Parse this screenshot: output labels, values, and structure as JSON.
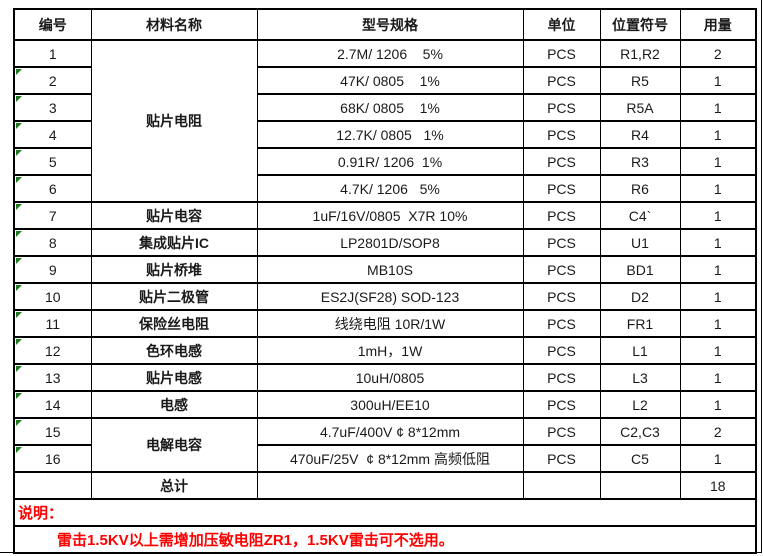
{
  "colors": {
    "note_red": "#FF0000",
    "marker_green": "#1F7A1F",
    "border": "#000000"
  },
  "table": {
    "headers": [
      "编号",
      "材料名称",
      "型号规格",
      "单位",
      "位置符号",
      "用量"
    ],
    "rows": [
      {
        "no": "1",
        "name": "贴片电阻",
        "name_rowspan": 6,
        "spec": "2.7M/ 1206    5%",
        "unit": "PCS",
        "ref": "R1,R2",
        "qty": "2",
        "marker": false
      },
      {
        "no": "2",
        "spec": "47K/ 0805    1%",
        "unit": "PCS",
        "ref": "R5",
        "qty": "1",
        "marker": true
      },
      {
        "no": "3",
        "spec": "68K/ 0805    1%",
        "unit": "PCS",
        "ref": "R5A",
        "qty": "1",
        "marker": true
      },
      {
        "no": "4",
        "spec": "12.7K/ 0805   1%",
        "unit": "PCS",
        "ref": "R4",
        "qty": "1",
        "marker": true
      },
      {
        "no": "5",
        "spec": "0.91R/ 1206  1%",
        "unit": "PCS",
        "ref": "R3",
        "qty": "1",
        "marker": true
      },
      {
        "no": "6",
        "spec": "4.7K/ 1206   5%",
        "unit": "PCS",
        "ref": "R6",
        "qty": "1",
        "marker": true
      },
      {
        "no": "7",
        "name": "贴片电容",
        "name_rowspan": 1,
        "spec": "1uF/16V/0805  X7R 10%",
        "unit": "PCS",
        "ref": "C4`",
        "qty": "1",
        "marker": true
      },
      {
        "no": "8",
        "name": "集成贴片IC",
        "name_rowspan": 1,
        "spec": "LP2801D/SOP8",
        "unit": "PCS",
        "ref": "U1",
        "qty": "1",
        "marker": true
      },
      {
        "no": "9",
        "name": "贴片桥堆",
        "name_rowspan": 1,
        "spec": "MB10S",
        "unit": "PCS",
        "ref": "BD1",
        "qty": "1",
        "marker": true
      },
      {
        "no": "10",
        "name": "贴片二极管",
        "name_rowspan": 1,
        "spec": "ES2J(SF28) SOD-123",
        "unit": "PCS",
        "ref": "D2",
        "qty": "1",
        "marker": true
      },
      {
        "no": "11",
        "name": "保险丝电阻",
        "name_rowspan": 1,
        "spec": "线绕电阻 10R/1W",
        "unit": "PCS",
        "ref": "FR1",
        "qty": "1",
        "marker": true
      },
      {
        "no": "12",
        "name": "色环电感",
        "name_rowspan": 1,
        "spec": "1mH，1W",
        "unit": "PCS",
        "ref": "L1",
        "qty": "1",
        "marker": true
      },
      {
        "no": "13",
        "name": "贴片电感",
        "name_rowspan": 1,
        "spec": "10uH/0805",
        "unit": "PCS",
        "ref": "L3",
        "qty": "1",
        "marker": true
      },
      {
        "no": "14",
        "name": "电感",
        "name_rowspan": 1,
        "spec": "300uH/EE10",
        "unit": "PCS",
        "ref": "L2",
        "qty": "1",
        "marker": true
      },
      {
        "no": "15",
        "name": "电解电容",
        "name_rowspan": 2,
        "spec": "4.7uF/400V ¢ 8*12mm",
        "unit": "PCS",
        "ref": "C2,C3",
        "qty": "2",
        "marker": true
      },
      {
        "no": "16",
        "spec": "470uF/25V  ¢ 8*12mm 高频低阻",
        "unit": "PCS",
        "ref": "C5",
        "qty": "1",
        "marker": true
      }
    ],
    "total": {
      "label": "总计",
      "qty": "18"
    },
    "note_title": "说明：",
    "note_text": "雷击1.5KV以上需增加压敏电阻ZR1，1.5KV雷击可不选用。"
  }
}
